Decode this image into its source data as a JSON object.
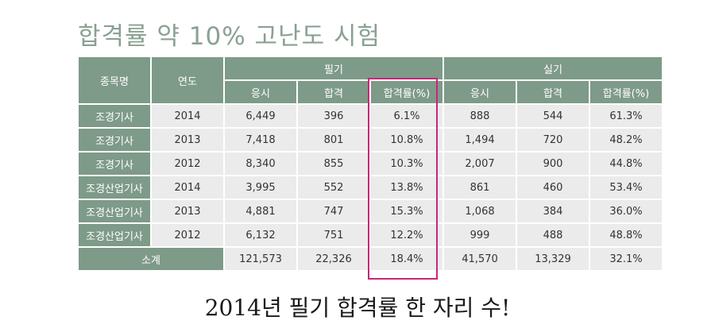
{
  "title": "합격률 약 10% 고난도 시험",
  "table": {
    "header": {
      "item": "종목명",
      "year": "연도",
      "written": "필기",
      "practical": "실기",
      "applicants": "응시",
      "passed": "합격",
      "rate": "합격률(%)"
    },
    "rows": [
      {
        "name": "조경기사",
        "year": "2014",
        "w_app": "6,449",
        "w_pass": "396",
        "w_rate": "6.1%",
        "p_app": "888",
        "p_pass": "544",
        "p_rate": "61.3%"
      },
      {
        "name": "조경기사",
        "year": "2013",
        "w_app": "7,418",
        "w_pass": "801",
        "w_rate": "10.8%",
        "p_app": "1,494",
        "p_pass": "720",
        "p_rate": "48.2%"
      },
      {
        "name": "조경기사",
        "year": "2012",
        "w_app": "8,340",
        "w_pass": "855",
        "w_rate": "10.3%",
        "p_app": "2,007",
        "p_pass": "900",
        "p_rate": "44.8%"
      },
      {
        "name": "조경산업기사",
        "year": "2014",
        "w_app": "3,995",
        "w_pass": "552",
        "w_rate": "13.8%",
        "p_app": "861",
        "p_pass": "460",
        "p_rate": "53.4%"
      },
      {
        "name": "조경산업기사",
        "year": "2013",
        "w_app": "4,881",
        "w_pass": "747",
        "w_rate": "15.3%",
        "p_app": "1,068",
        "p_pass": "384",
        "p_rate": "36.0%"
      },
      {
        "name": "조경산업기사",
        "year": "2012",
        "w_app": "6,132",
        "w_pass": "751",
        "w_rate": "12.2%",
        "p_app": "999",
        "p_pass": "488",
        "p_rate": "48.8%"
      }
    ],
    "total": {
      "label": "소계",
      "w_app": "121,573",
      "w_pass": "22,326",
      "w_rate": "18.4%",
      "p_app": "41,570",
      "p_pass": "13,329",
      "p_rate": "32.1%"
    }
  },
  "caption": "2014년 필기 합격률 한 자리 수!",
  "colors": {
    "header_bg": "#7e9a89",
    "cell_bg": "#ebebeb",
    "highlight": "#c8267a",
    "title": "#8aa193"
  }
}
